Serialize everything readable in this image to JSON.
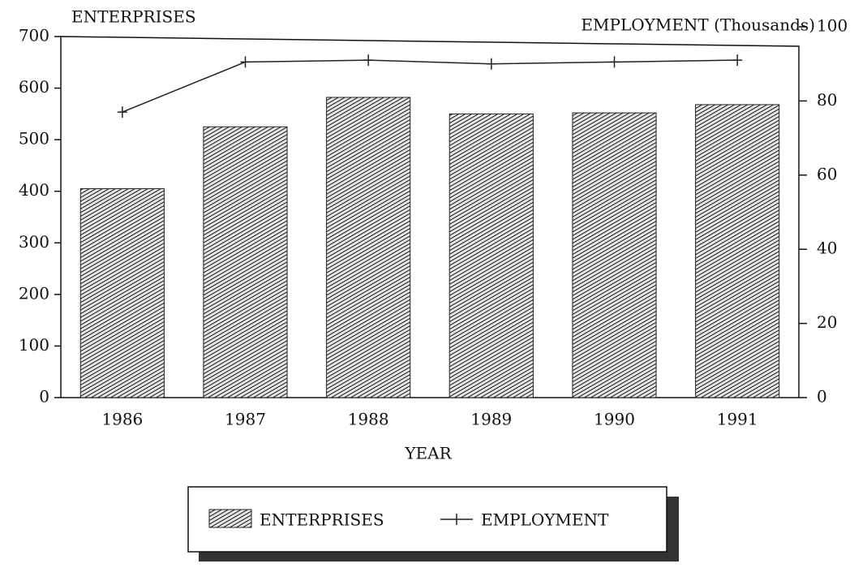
{
  "chart_data": {
    "type": "bar",
    "y_label": "ENTERPRISES",
    "y2_label": "EMPLOYMENT (Thousands)",
    "x_label": "YEAR",
    "categories": [
      "1986",
      "1987",
      "1988",
      "1989",
      "1990",
      "1991"
    ],
    "series": [
      {
        "name": "ENTERPRISES",
        "color": "#222222",
        "values": [
          405,
          525,
          582,
          550,
          552,
          568
        ]
      },
      {
        "name": "EMPLOYMENT",
        "color": "#222222",
        "type": "line",
        "axis": "y2",
        "values": [
          77,
          90.5,
          91,
          90,
          90.5,
          91
        ]
      }
    ],
    "ylim": [
      0,
      700
    ],
    "yticks": [
      0,
      100,
      200,
      300,
      400,
      500,
      600,
      700
    ],
    "y2lim": [
      0,
      100
    ],
    "y2ticks": [
      0,
      20,
      40,
      60,
      80,
      100
    ],
    "legend": "bottom"
  }
}
